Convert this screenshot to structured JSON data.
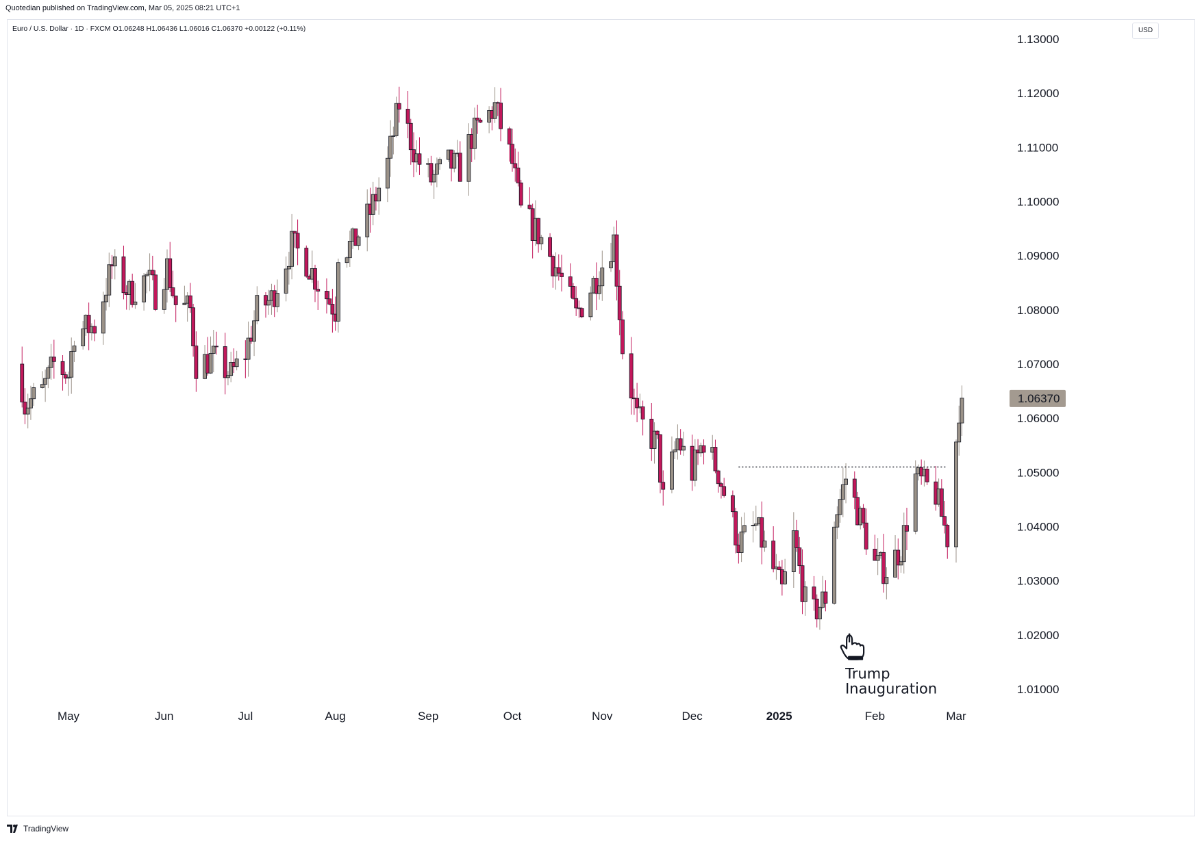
{
  "published_line": "Quotedian published on TradingView.com, Mar 05, 2025 08:21 UTC+1",
  "legend": "Euro / U.S. Dollar · 1D · FXCM  O1.06248  H1.06436  L1.06016  C1.06370  +0.00122 (+0.11%)",
  "currency_button": "USD",
  "footer_brand": "TradingView",
  "icons": {
    "brand": "tradingview-logo-icon",
    "annotation": "pointing-hand-icon"
  },
  "colors": {
    "up": "#9b9288",
    "down": "#c2185b",
    "candle_border": "#131722",
    "price_tag": "#a39a90",
    "grid": "#e0e3eb"
  },
  "chart_data": {
    "type": "candlestick",
    "symbol": "EURUSD",
    "timeframe": "1D",
    "y_ticks": [
      "1.13000",
      "1.12000",
      "1.11000",
      "1.10000",
      "1.09000",
      "1.08000",
      "1.07000",
      "1.06000",
      "1.05000",
      "1.04000",
      "1.03000",
      "1.02000",
      "1.01000"
    ],
    "ylim": [
      1.005,
      1.13
    ],
    "x_ticks": [
      {
        "label": "May",
        "date": "2024-05-01"
      },
      {
        "label": "Jun",
        "date": "2024-06-03"
      },
      {
        "label": "Jul",
        "date": "2024-07-01"
      },
      {
        "label": "Aug",
        "date": "2024-08-01"
      },
      {
        "label": "Sep",
        "date": "2024-09-02"
      },
      {
        "label": "Oct",
        "date": "2024-10-01"
      },
      {
        "label": "Nov",
        "date": "2024-11-01"
      },
      {
        "label": "Dec",
        "date": "2024-12-02"
      },
      {
        "label": "2025",
        "date": "2025-01-01"
      },
      {
        "label": "Feb",
        "date": "2025-02-03"
      },
      {
        "label": "Mar",
        "date": "2025-03-03"
      }
    ],
    "last_price": "1.06370",
    "last_price_value": 1.0637,
    "horizontal_line": {
      "value": 1.051,
      "start_date": "2024-12-18",
      "end_date": "2025-02-28",
      "style": "dotted"
    },
    "annotation": {
      "text_line1": "Trump",
      "text_line2": "Inauguration",
      "date": "2025-01-20",
      "value": 1.018
    },
    "series_path": [
      [
        "2024-04-15",
        1.066
      ],
      [
        "2024-04-16",
        1.0625
      ],
      [
        "2024-04-22",
        1.065
      ],
      [
        "2024-04-26",
        1.07
      ],
      [
        "2024-05-01",
        1.068
      ],
      [
        "2024-05-03",
        1.076
      ],
      [
        "2024-05-10",
        1.077
      ],
      [
        "2024-05-16",
        1.088
      ],
      [
        "2024-05-22",
        1.083
      ],
      [
        "2024-05-28",
        1.086
      ],
      [
        "2024-05-31",
        1.083
      ],
      [
        "2024-06-04",
        1.088
      ],
      [
        "2024-06-07",
        1.081
      ],
      [
        "2024-06-12",
        1.08
      ],
      [
        "2024-06-14",
        1.07
      ],
      [
        "2024-06-20",
        1.071
      ],
      [
        "2024-06-26",
        1.068
      ],
      [
        "2024-07-01",
        1.072
      ],
      [
        "2024-07-05",
        1.08
      ],
      [
        "2024-07-10",
        1.082
      ],
      [
        "2024-07-17",
        1.092
      ],
      [
        "2024-07-22",
        1.089
      ],
      [
        "2024-07-26",
        1.085
      ],
      [
        "2024-08-01",
        1.08
      ],
      [
        "2024-08-02",
        1.091
      ],
      [
        "2024-08-07",
        1.092
      ],
      [
        "2024-08-13",
        1.098
      ],
      [
        "2024-08-19",
        1.107
      ],
      [
        "2024-08-23",
        1.118
      ],
      [
        "2024-08-29",
        1.108
      ],
      [
        "2024-09-03",
        1.104
      ],
      [
        "2024-09-09",
        1.107
      ],
      [
        "2024-09-13",
        1.106
      ],
      [
        "2024-09-17",
        1.112
      ],
      [
        "2024-09-25",
        1.1175
      ],
      [
        "2024-10-01",
        1.107
      ],
      [
        "2024-10-04",
        1.098
      ],
      [
        "2024-10-10",
        1.094
      ],
      [
        "2024-10-16",
        1.088
      ],
      [
        "2024-10-23",
        1.079
      ],
      [
        "2024-10-30",
        1.086
      ],
      [
        "2024-11-05",
        1.093
      ],
      [
        "2024-11-08",
        1.073
      ],
      [
        "2024-11-13",
        1.06
      ],
      [
        "2024-11-20",
        1.055
      ],
      [
        "2024-11-22",
        1.045
      ],
      [
        "2024-11-27",
        1.056
      ],
      [
        "2024-12-02",
        1.05
      ],
      [
        "2024-12-06",
        1.056
      ],
      [
        "2024-12-11",
        1.05
      ],
      [
        "2024-12-18",
        1.037
      ],
      [
        "2024-12-24",
        1.04
      ],
      [
        "2025-01-02",
        1.028
      ],
      [
        "2025-01-06",
        1.038
      ],
      [
        "2025-01-10",
        1.026
      ],
      [
        "2025-01-13",
        1.024
      ],
      [
        "2025-01-17",
        1.027
      ],
      [
        "2025-01-20",
        1.041
      ],
      [
        "2025-01-24",
        1.049
      ],
      [
        "2025-01-28",
        1.043
      ],
      [
        "2025-02-03",
        1.033
      ],
      [
        "2025-02-07",
        1.032
      ],
      [
        "2025-02-12",
        1.036
      ],
      [
        "2025-02-17",
        1.049
      ],
      [
        "2025-02-24",
        1.046
      ],
      [
        "2025-02-28",
        1.038
      ],
      [
        "2025-03-04",
        1.062
      ],
      [
        "2025-03-05",
        1.0637
      ]
    ]
  }
}
